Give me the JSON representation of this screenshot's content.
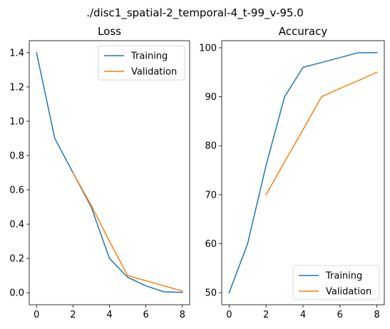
{
  "figure": {
    "suptitle": "./disc1_spatial-2_temporal-4_t-99_v-95.0"
  },
  "colors": {
    "training": "#1f77b4",
    "validation": "#ff7f0e"
  },
  "chart_data": [
    {
      "type": "line",
      "title": "Loss",
      "xlabel": "",
      "ylabel": "",
      "xlim": [
        -0.4,
        8.4
      ],
      "ylim": [
        -0.07,
        1.47
      ],
      "xticks": [
        0,
        2,
        4,
        6,
        8
      ],
      "yticks": [
        0.0,
        0.2,
        0.4,
        0.6,
        0.8,
        1.0,
        1.2,
        1.4
      ],
      "ytick_labels": [
        "0.0",
        "0.2",
        "0.4",
        "0.6",
        "0.8",
        "1.0",
        "1.2",
        "1.4"
      ],
      "grid": false,
      "legend_position": "upper right",
      "series": [
        {
          "name": "Training",
          "x": [
            0,
            1,
            2,
            3,
            4,
            5,
            6,
            7,
            8
          ],
          "values": [
            1.4,
            0.9,
            0.7,
            0.5,
            0.2,
            0.09,
            0.04,
            0.005,
            0.002
          ]
        },
        {
          "name": "Validation",
          "x": [
            2,
            3,
            4,
            5,
            6,
            7,
            8
          ],
          "values": [
            0.7,
            0.51,
            0.3,
            0.1,
            0.07,
            0.04,
            0.01
          ]
        }
      ]
    },
    {
      "type": "line",
      "title": "Accuracy",
      "xlabel": "",
      "ylabel": "",
      "xlim": [
        -0.4,
        8.4
      ],
      "ylim": [
        47.55,
        101.45
      ],
      "xticks": [
        0,
        2,
        4,
        6,
        8
      ],
      "yticks": [
        50,
        60,
        70,
        80,
        90,
        100
      ],
      "ytick_labels": [
        "50",
        "60",
        "70",
        "80",
        "90",
        "100"
      ],
      "grid": false,
      "legend_position": "lower right",
      "series": [
        {
          "name": "Training",
          "x": [
            0,
            1,
            2,
            3,
            4,
            5,
            6,
            7,
            8
          ],
          "values": [
            50,
            60,
            76,
            90,
            96,
            97,
            98,
            99,
            99
          ]
        },
        {
          "name": "Validation",
          "x": [
            2,
            3,
            4,
            5,
            6,
            7,
            8
          ],
          "values": [
            70,
            76.7,
            83.3,
            90,
            91.7,
            93.3,
            95
          ]
        }
      ]
    }
  ]
}
